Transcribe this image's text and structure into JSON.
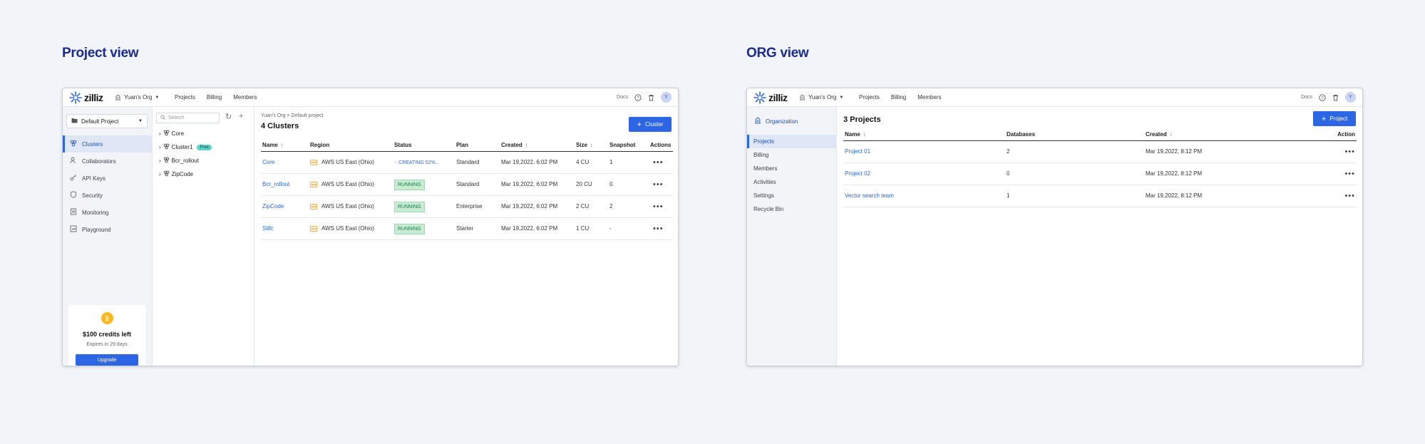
{
  "project_view": {
    "heading": "Project view",
    "topbar": {
      "logo": "zilliz",
      "org": "Yuan's Org",
      "nav": [
        "Projects",
        "Billing",
        "Members"
      ],
      "docs": "Docs",
      "avatar": "Y"
    },
    "project_select": "Default Project",
    "menu": [
      {
        "label": "Clusters",
        "icon": "clusters-icon",
        "active": true
      },
      {
        "label": "Collaborators",
        "icon": "collaborators-icon"
      },
      {
        "label": "API Keys",
        "icon": "key-icon"
      },
      {
        "label": "Security",
        "icon": "shield-icon"
      },
      {
        "label": "Monitoring",
        "icon": "monitoring-icon"
      },
      {
        "label": "Playground",
        "icon": "playground-icon"
      }
    ],
    "credits": {
      "coin": "$",
      "title": "$100 credits left",
      "subtitle": "Expires in 29 days",
      "button": "Upgrade"
    },
    "search_placeholder": "Search",
    "tree": [
      {
        "label": "Core"
      },
      {
        "label": "Cluster1",
        "badge": "Free"
      },
      {
        "label": "Bcr_rollout"
      },
      {
        "label": "ZipCode"
      }
    ],
    "breadcrumb": {
      "org": "Yuan's Org",
      "sep": ">",
      "project": "Default project"
    },
    "title": "4 Clusters",
    "add_button": "Cluster",
    "columns": [
      "Name",
      "Region",
      "Status",
      "Plan",
      "Created",
      "Size",
      "Snapshot",
      "Actions"
    ],
    "rows": [
      {
        "name": "Core",
        "region": "AWS US East (Ohio)",
        "status": "CREATING 52%...",
        "status_type": "creating",
        "plan": "Standard",
        "created": "Mar 19,2022, 6:02 PM",
        "size": "4 CU",
        "snapshot": "1"
      },
      {
        "name": "Bcr_rollout",
        "region": "AWS US East (Ohio)",
        "status": "RUNNING",
        "status_type": "running",
        "plan": "Standard",
        "created": "Mar 19,2022, 6:02 PM",
        "size": "20 CU",
        "snapshot": "0"
      },
      {
        "name": "ZipCode",
        "region": "AWS US East (Ohio)",
        "status": "RUNNING",
        "status_type": "running",
        "plan": "Enterprise",
        "created": "Mar 19,2022, 6:02 PM",
        "size": "2 CU",
        "snapshot": "2"
      },
      {
        "name": "Stifc",
        "region": "AWS US East (Ohio)",
        "status": "RUNNING",
        "status_type": "running",
        "plan": "Starter",
        "created": "Mar 19,2022, 6:02 PM",
        "size": "1 CU",
        "snapshot": "-"
      }
    ]
  },
  "org_view": {
    "heading": "ORG view",
    "topbar": {
      "logo": "zilliz",
      "org": "Yuan's Org",
      "nav": [
        "Projects",
        "Billing",
        "Members"
      ],
      "docs": "Docs",
      "avatar": "Y"
    },
    "sidebar_title": "Organization",
    "menu": [
      {
        "label": "Projects",
        "active": true
      },
      {
        "label": "Billing"
      },
      {
        "label": "Members"
      },
      {
        "label": "Activities"
      },
      {
        "label": "Settings"
      },
      {
        "label": "Recycle Bin"
      }
    ],
    "title": "3 Projects",
    "add_button": "Project",
    "columns": [
      "Name",
      "Databases",
      "Created",
      "Action"
    ],
    "rows": [
      {
        "name": "Project 01",
        "databases": "2",
        "created": "Mar 19,2022, 8:12 PM"
      },
      {
        "name": "Project 02",
        "databases": "0",
        "created": "Mar 19,2022, 8:12 PM"
      },
      {
        "name": "Vector search team",
        "databases": "1",
        "created": "Mar 19,2022, 8:12 PM"
      }
    ]
  },
  "colors": {
    "accent": "#2c66e4",
    "heading": "#1c2b8c",
    "running_bg": "#c7ecd3",
    "coin": "#f8b820"
  }
}
